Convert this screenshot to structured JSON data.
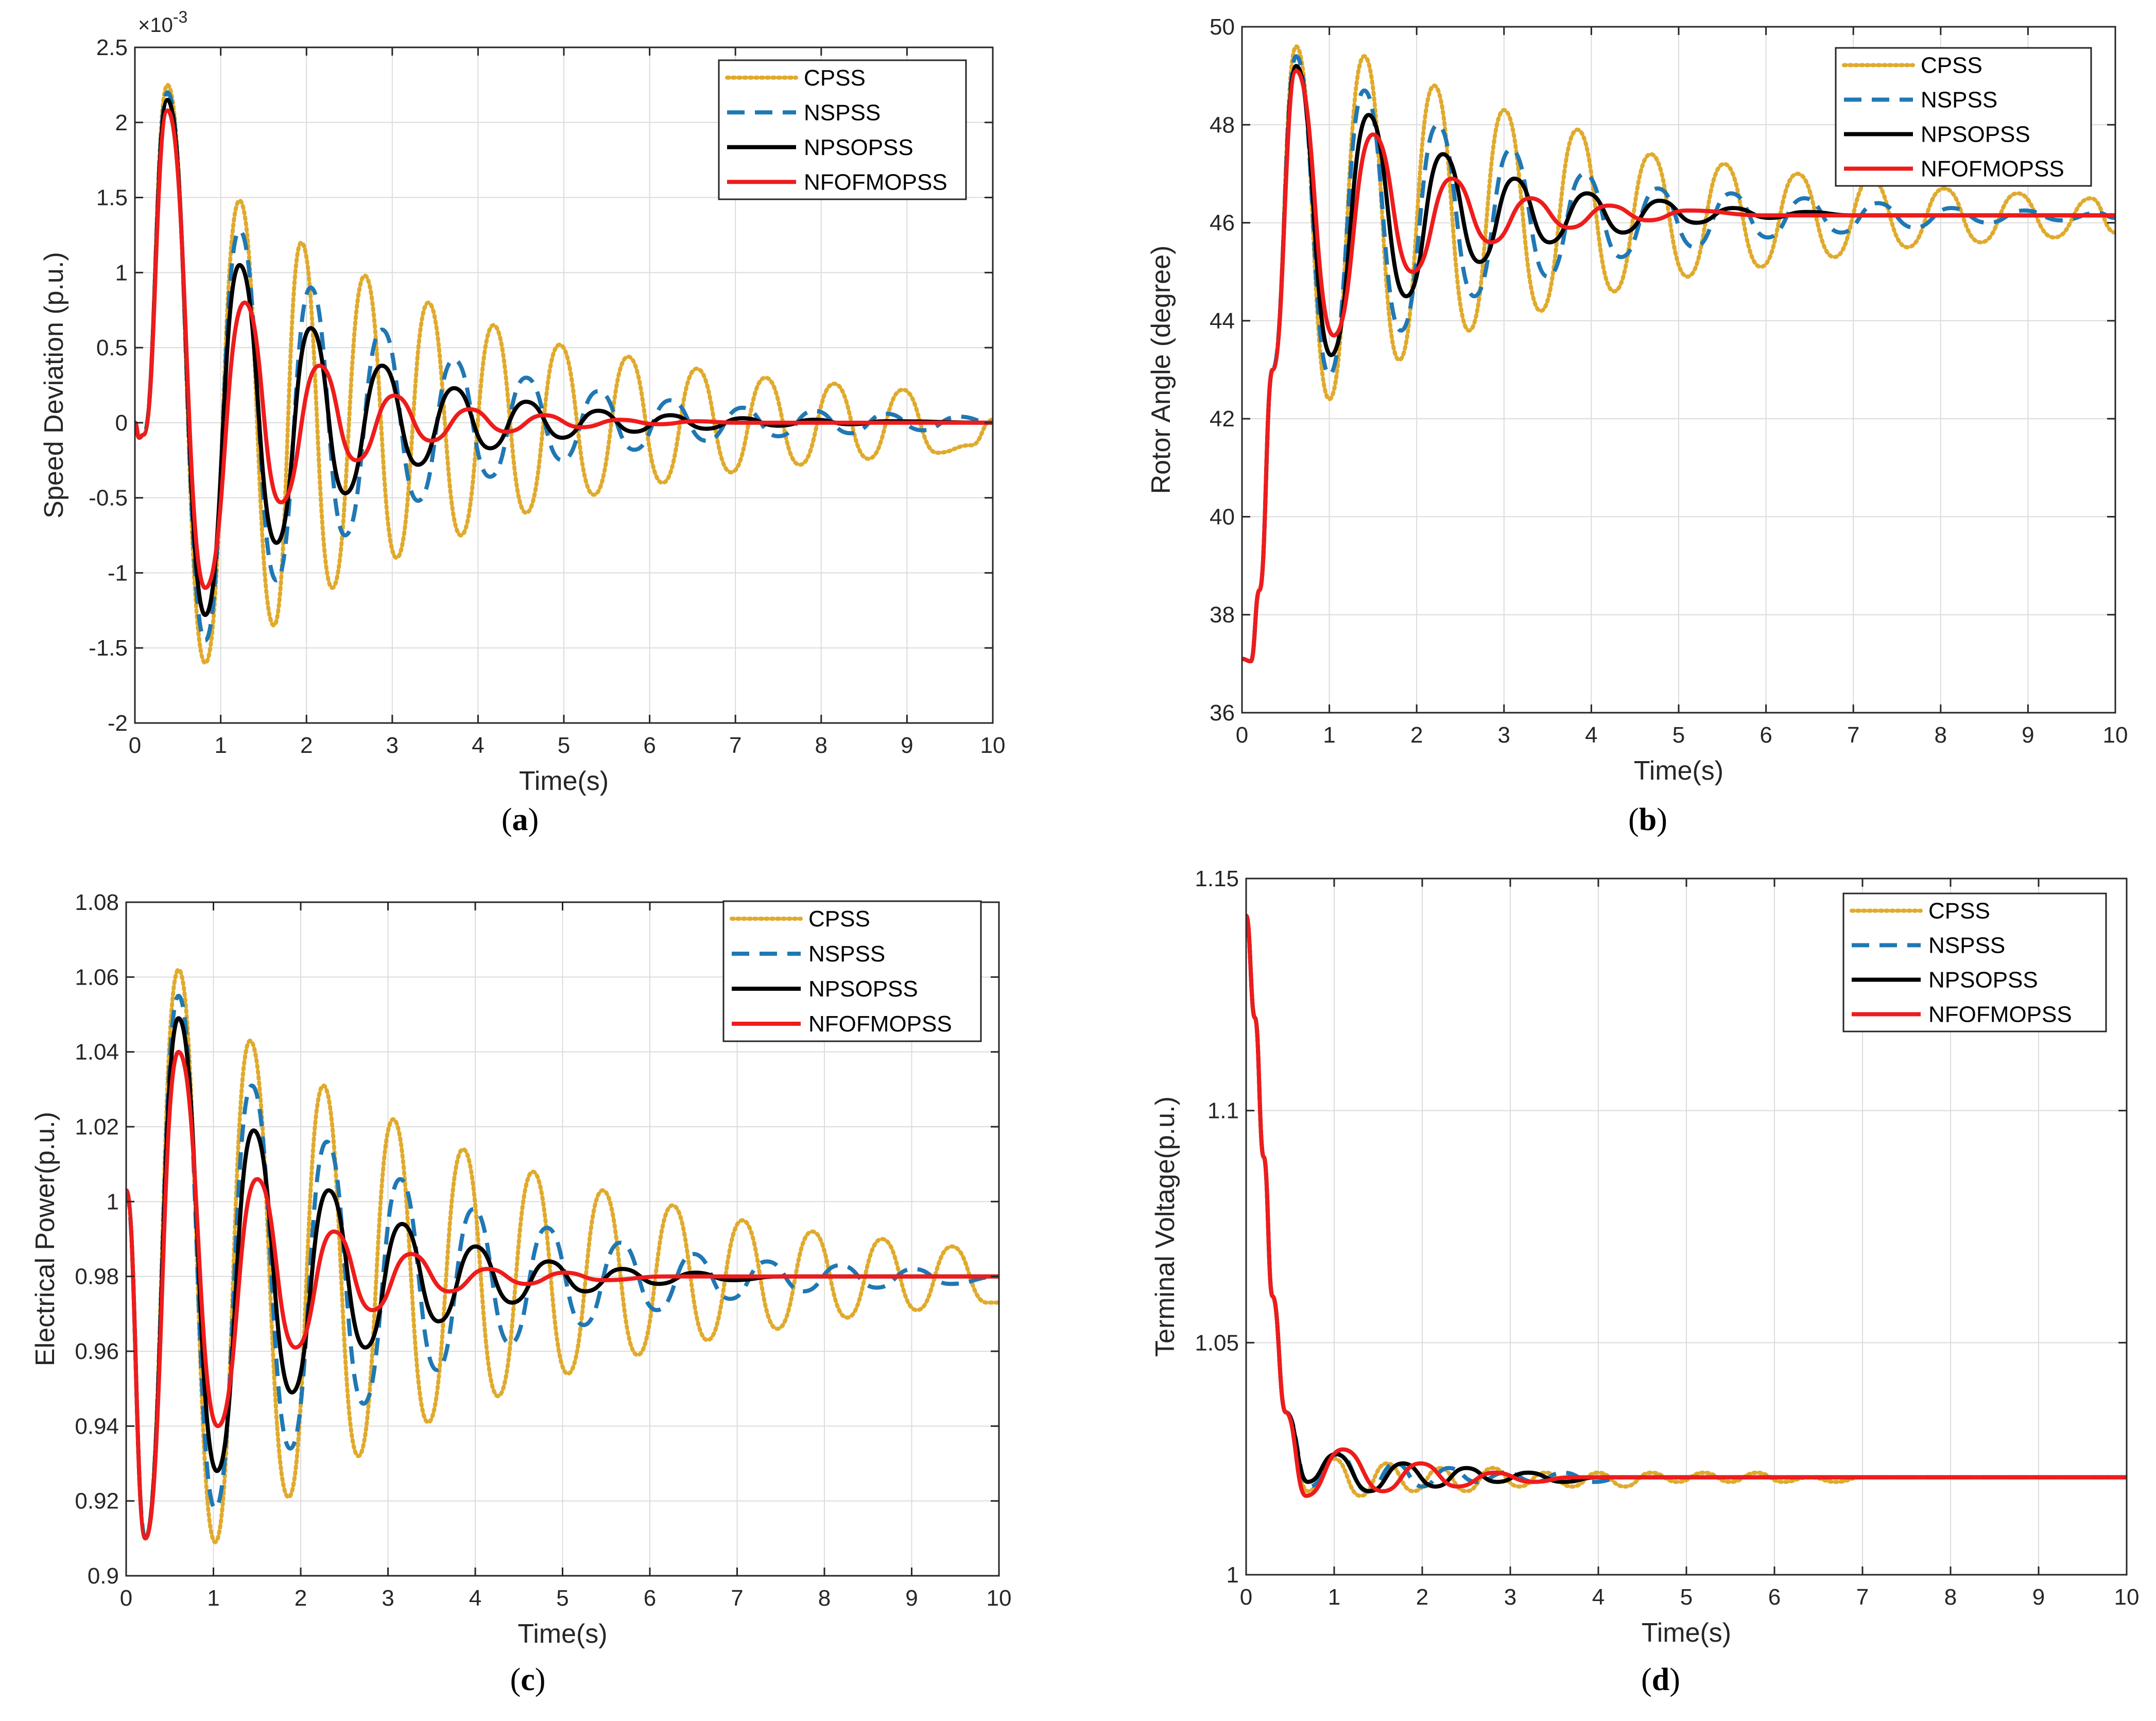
{
  "colors": {
    "CPSS": "#E0AA2C",
    "NSPSS": "#1F78B4",
    "NPSOPSS": "#000000",
    "NFOFMOPSS": "#EE1C1C",
    "grid": "#DCDCDC",
    "axes": "#262626"
  },
  "legend_entries": [
    "CPSS",
    "NSPSS",
    "NPSOPSS",
    "NFOFMOPSS"
  ],
  "chart_data": [
    {
      "id": "a",
      "caption_letter": "a",
      "type": "line",
      "xlabel": "Time(s)",
      "ylabel": "Speed Deviation (p.u.)",
      "exponent_base": "×10",
      "exponent_power": "-3",
      "xlim": [
        0,
        10
      ],
      "ylim": [
        -2,
        2.5
      ],
      "xticks": [
        0,
        1,
        2,
        3,
        4,
        5,
        6,
        7,
        8,
        9,
        10
      ],
      "yticks": [
        -2,
        -1.5,
        -1,
        -0.5,
        0,
        0.5,
        1,
        1.5,
        2,
        2.5
      ],
      "ytick_labels": [
        "-2",
        "-1.5",
        "-1",
        "-0.5",
        "0",
        "0.5",
        "1",
        "1.5",
        "2",
        "2.5"
      ],
      "grid": true,
      "legend_position": "top-right",
      "series": [
        {
          "name": "CPSS",
          "style": "dotted",
          "x": [
            0,
            0.05,
            0.1,
            0.38,
            0.82,
            1.22,
            1.62,
            1.94,
            2.3,
            2.68,
            3.05,
            3.42,
            3.8,
            4.18,
            4.56,
            4.95,
            5.35,
            5.75,
            6.15,
            6.55,
            6.95,
            7.35,
            7.75,
            8.15,
            8.55,
            8.95,
            9.35,
            9.75,
            10
          ],
          "y": [
            0,
            -0.1,
            -0.08,
            2.25,
            -1.6,
            1.48,
            -1.35,
            1.2,
            -1.1,
            0.98,
            -0.9,
            0.8,
            -0.75,
            0.65,
            -0.6,
            0.52,
            -0.48,
            0.44,
            -0.4,
            0.36,
            -0.33,
            0.3,
            -0.28,
            0.26,
            -0.24,
            0.22,
            -0.2,
            -0.15,
            0.02
          ]
        },
        {
          "name": "NSPSS",
          "style": "dashed",
          "x": [
            0,
            0.05,
            0.1,
            0.38,
            0.82,
            1.22,
            1.65,
            2.05,
            2.45,
            2.88,
            3.3,
            3.72,
            4.14,
            4.56,
            4.98,
            5.4,
            5.82,
            6.24,
            6.66,
            7.08,
            7.5,
            7.92,
            8.34,
            8.76,
            9.18,
            9.6,
            10
          ],
          "y": [
            0,
            -0.1,
            -0.08,
            2.2,
            -1.45,
            1.28,
            -1.05,
            0.9,
            -0.75,
            0.62,
            -0.52,
            0.42,
            -0.36,
            0.3,
            -0.25,
            0.21,
            -0.18,
            0.15,
            -0.12,
            0.1,
            -0.09,
            0.08,
            -0.07,
            0.06,
            -0.05,
            0.04,
            0.0
          ]
        },
        {
          "name": "NPSOPSS",
          "style": "solid",
          "x": [
            0,
            0.05,
            0.1,
            0.38,
            0.82,
            1.22,
            1.65,
            2.05,
            2.45,
            2.88,
            3.3,
            3.72,
            4.14,
            4.56,
            4.98,
            5.4,
            5.82,
            6.24,
            6.66,
            7.08,
            7.5,
            7.92,
            8.34,
            8.76,
            10
          ],
          "y": [
            0,
            -0.1,
            -0.08,
            2.15,
            -1.28,
            1.05,
            -0.8,
            0.63,
            -0.47,
            0.38,
            -0.28,
            0.23,
            -0.17,
            0.14,
            -0.1,
            0.08,
            -0.06,
            0.05,
            -0.04,
            0.03,
            -0.02,
            0.02,
            -0.01,
            0.01,
            0.0
          ]
        },
        {
          "name": "NFOFMOPSS",
          "style": "solid",
          "x": [
            0,
            0.05,
            0.1,
            0.38,
            0.82,
            1.28,
            1.7,
            2.15,
            2.58,
            3.02,
            3.45,
            3.9,
            4.33,
            4.77,
            5.2,
            5.65,
            6.1,
            6.55,
            7.0,
            10
          ],
          "y": [
            0,
            -0.1,
            -0.08,
            2.08,
            -1.1,
            0.8,
            -0.53,
            0.38,
            -0.25,
            0.18,
            -0.12,
            0.09,
            -0.06,
            0.05,
            -0.03,
            0.02,
            -0.01,
            0.01,
            0.0,
            0.0
          ]
        }
      ]
    },
    {
      "id": "b",
      "caption_letter": "b",
      "type": "line",
      "xlabel": "Time(s)",
      "ylabel": "Rotor Angle (degree)",
      "xlim": [
        0,
        10
      ],
      "ylim": [
        36,
        50
      ],
      "xticks": [
        0,
        1,
        2,
        3,
        4,
        5,
        6,
        7,
        8,
        9,
        10
      ],
      "yticks": [
        36,
        38,
        40,
        42,
        44,
        46,
        48,
        50
      ],
      "ytick_labels": [
        "36",
        "38",
        "40",
        "42",
        "44",
        "46",
        "48",
        "50"
      ],
      "grid": true,
      "legend_position": "top-right",
      "series": [
        {
          "name": "CPSS",
          "style": "dotted",
          "x": [
            0,
            0.1,
            0.2,
            0.35,
            0.62,
            1.0,
            1.4,
            1.8,
            2.2,
            2.6,
            3.0,
            3.42,
            3.84,
            4.26,
            4.68,
            5.1,
            5.52,
            5.94,
            6.36,
            6.78,
            7.2,
            7.62,
            8.04,
            8.46,
            8.88,
            9.3,
            9.72,
            10
          ],
          "y": [
            37.1,
            37.05,
            38.5,
            43.0,
            49.6,
            42.4,
            49.4,
            43.2,
            48.8,
            43.8,
            48.3,
            44.2,
            47.9,
            44.6,
            47.4,
            44.9,
            47.2,
            45.1,
            47.0,
            45.3,
            46.9,
            45.5,
            46.7,
            45.6,
            46.6,
            45.7,
            46.5,
            45.8
          ]
        },
        {
          "name": "NSPSS",
          "style": "dashed",
          "x": [
            0,
            0.1,
            0.2,
            0.35,
            0.62,
            1.0,
            1.4,
            1.82,
            2.24,
            2.66,
            3.08,
            3.5,
            3.92,
            4.34,
            4.76,
            5.18,
            5.6,
            6.02,
            6.44,
            6.86,
            7.28,
            7.7,
            8.12,
            8.54,
            8.96,
            9.38,
            9.8,
            10
          ],
          "y": [
            37.1,
            37.05,
            38.5,
            43.0,
            49.4,
            42.9,
            48.7,
            43.8,
            48.0,
            44.5,
            47.5,
            44.9,
            47.0,
            45.3,
            46.7,
            45.5,
            46.6,
            45.7,
            46.5,
            45.8,
            46.4,
            45.9,
            46.3,
            46.0,
            46.25,
            46.05,
            46.2,
            46.1
          ]
        },
        {
          "name": "NPSOPSS",
          "style": "solid",
          "x": [
            0,
            0.1,
            0.2,
            0.35,
            0.62,
            1.02,
            1.45,
            1.88,
            2.3,
            2.72,
            3.12,
            3.52,
            3.95,
            4.36,
            4.78,
            5.2,
            5.62,
            6.04,
            6.46,
            7.0,
            10
          ],
          "y": [
            37.1,
            37.05,
            38.5,
            43.0,
            49.2,
            43.3,
            48.2,
            44.5,
            47.4,
            45.2,
            46.9,
            45.6,
            46.6,
            45.8,
            46.45,
            46.0,
            46.3,
            46.1,
            46.22,
            46.15,
            46.15
          ]
        },
        {
          "name": "NFOFMOPSS",
          "style": "solid",
          "x": [
            0,
            0.1,
            0.2,
            0.35,
            0.62,
            1.05,
            1.5,
            1.95,
            2.4,
            2.85,
            3.3,
            3.75,
            4.2,
            4.65,
            5.1,
            6.0,
            10
          ],
          "y": [
            37.1,
            37.05,
            38.5,
            43.0,
            49.1,
            43.7,
            47.8,
            45.0,
            46.9,
            45.6,
            46.5,
            45.9,
            46.35,
            46.05,
            46.25,
            46.15,
            46.15
          ]
        }
      ]
    },
    {
      "id": "c",
      "caption_letter": "c",
      "type": "line",
      "xlabel": "Time(s)",
      "ylabel": "Electrical Power(p.u.)",
      "xlim": [
        0,
        10
      ],
      "ylim": [
        0.9,
        1.08
      ],
      "xticks": [
        0,
        1,
        2,
        3,
        4,
        5,
        6,
        7,
        8,
        9,
        10
      ],
      "yticks": [
        0.9,
        0.92,
        0.94,
        0.96,
        0.98,
        1.0,
        1.02,
        1.04,
        1.06,
        1.08
      ],
      "ytick_labels": [
        "0.9",
        "0.92",
        "0.94",
        "0.96",
        "0.98",
        "1",
        "1.02",
        "1.04",
        "1.06",
        "1.08"
      ],
      "grid": true,
      "legend_position": "top-right",
      "series": [
        {
          "name": "CPSS",
          "style": "dotted",
          "x": [
            0,
            0.22,
            0.6,
            1.02,
            1.42,
            1.86,
            2.26,
            2.66,
            3.06,
            3.46,
            3.86,
            4.26,
            4.66,
            5.06,
            5.46,
            5.86,
            6.26,
            6.66,
            7.06,
            7.46,
            7.86,
            8.26,
            8.66,
            9.06,
            9.46,
            9.86,
            10
          ],
          "y": [
            1.003,
            0.91,
            1.062,
            0.909,
            1.043,
            0.921,
            1.031,
            0.932,
            1.022,
            0.941,
            1.014,
            0.948,
            1.008,
            0.954,
            1.003,
            0.959,
            0.999,
            0.963,
            0.995,
            0.966,
            0.992,
            0.969,
            0.99,
            0.971,
            0.988,
            0.973,
            0.973
          ]
        },
        {
          "name": "NSPSS",
          "style": "dashed",
          "x": [
            0,
            0.22,
            0.6,
            1.02,
            1.44,
            1.88,
            2.3,
            2.72,
            3.14,
            3.56,
            3.98,
            4.4,
            4.82,
            5.24,
            5.66,
            6.08,
            6.5,
            6.92,
            7.34,
            7.76,
            8.18,
            8.6,
            9.02,
            9.44,
            10
          ],
          "y": [
            1.003,
            0.91,
            1.055,
            0.918,
            1.031,
            0.934,
            1.016,
            0.946,
            1.006,
            0.955,
            0.998,
            0.962,
            0.993,
            0.967,
            0.989,
            0.971,
            0.986,
            0.974,
            0.984,
            0.976,
            0.983,
            0.977,
            0.982,
            0.978,
            0.98
          ]
        },
        {
          "name": "NPSOPSS",
          "style": "solid",
          "x": [
            0,
            0.22,
            0.6,
            1.04,
            1.46,
            1.9,
            2.32,
            2.74,
            3.16,
            3.58,
            4.0,
            4.42,
            4.84,
            5.26,
            5.68,
            6.1,
            6.52,
            6.94,
            7.5,
            10
          ],
          "y": [
            1.003,
            0.91,
            1.049,
            0.928,
            1.019,
            0.949,
            1.003,
            0.961,
            0.994,
            0.968,
            0.988,
            0.973,
            0.984,
            0.976,
            0.982,
            0.978,
            0.981,
            0.979,
            0.98,
            0.98
          ]
        },
        {
          "name": "NFOFMOPSS",
          "style": "solid",
          "x": [
            0,
            0.22,
            0.6,
            1.05,
            1.5,
            1.94,
            2.38,
            2.82,
            3.26,
            3.7,
            4.14,
            4.58,
            5.02,
            5.46,
            6.2,
            10
          ],
          "y": [
            1.003,
            0.91,
            1.04,
            0.94,
            1.006,
            0.961,
            0.992,
            0.971,
            0.986,
            0.976,
            0.982,
            0.978,
            0.981,
            0.979,
            0.98,
            0.98
          ]
        }
      ]
    },
    {
      "id": "d",
      "caption_letter": "d",
      "type": "line",
      "xlabel": "Time(s)",
      "ylabel": "Terminal Voltage(p.u.)",
      "xlim": [
        0,
        10
      ],
      "ylim": [
        1.0,
        1.15
      ],
      "xticks": [
        0,
        1,
        2,
        3,
        4,
        5,
        6,
        7,
        8,
        9,
        10
      ],
      "yticks": [
        1.0,
        1.05,
        1.1,
        1.15
      ],
      "ytick_labels": [
        "1",
        "1.05",
        "1.1",
        "1.15"
      ],
      "grid": true,
      "legend_position": "top-right",
      "series": [
        {
          "name": "CPSS",
          "style": "dotted",
          "x": [
            0,
            0.1,
            0.2,
            0.3,
            0.45,
            0.7,
            1.0,
            1.3,
            1.6,
            1.9,
            2.2,
            2.5,
            2.8,
            3.1,
            3.4,
            3.7,
            4.0,
            4.3,
            4.6,
            4.9,
            5.2,
            5.5,
            5.8,
            6.1,
            6.4,
            6.7,
            7.0,
            10
          ],
          "y": [
            1.142,
            1.12,
            1.09,
            1.06,
            1.035,
            1.018,
            1.025,
            1.017,
            1.024,
            1.018,
            1.023,
            1.018,
            1.023,
            1.019,
            1.022,
            1.019,
            1.022,
            1.019,
            1.022,
            1.02,
            1.022,
            1.02,
            1.022,
            1.02,
            1.021,
            1.02,
            1.021,
            1.021
          ]
        },
        {
          "name": "NSPSS",
          "style": "dashed",
          "x": [
            0,
            0.1,
            0.2,
            0.3,
            0.45,
            0.72,
            1.05,
            1.38,
            1.7,
            2.0,
            2.3,
            2.62,
            2.95,
            3.28,
            3.6,
            3.95,
            4.3,
            4.7,
            5.2,
            10
          ],
          "y": [
            1.142,
            1.12,
            1.09,
            1.06,
            1.035,
            1.019,
            1.026,
            1.018,
            1.024,
            1.019,
            1.023,
            1.02,
            1.022,
            1.02,
            1.022,
            1.02,
            1.021,
            1.021,
            1.021,
            1.021
          ]
        },
        {
          "name": "NPSOPSS",
          "style": "solid",
          "x": [
            0,
            0.1,
            0.2,
            0.3,
            0.45,
            0.7,
            1.02,
            1.4,
            1.78,
            2.15,
            2.5,
            2.85,
            3.2,
            3.6,
            4.0,
            4.5,
            10
          ],
          "y": [
            1.142,
            1.12,
            1.09,
            1.06,
            1.035,
            1.02,
            1.026,
            1.018,
            1.024,
            1.019,
            1.023,
            1.02,
            1.022,
            1.02,
            1.021,
            1.021,
            1.021
          ]
        },
        {
          "name": "NFOFMOPSS",
          "style": "solid",
          "x": [
            0,
            0.1,
            0.2,
            0.3,
            0.45,
            0.68,
            1.1,
            1.55,
            1.98,
            2.4,
            2.82,
            3.25,
            3.7,
            4.2,
            5.0,
            10
          ],
          "y": [
            1.142,
            1.12,
            1.09,
            1.06,
            1.035,
            1.017,
            1.027,
            1.018,
            1.024,
            1.019,
            1.022,
            1.02,
            1.021,
            1.021,
            1.021,
            1.021
          ]
        }
      ]
    }
  ]
}
